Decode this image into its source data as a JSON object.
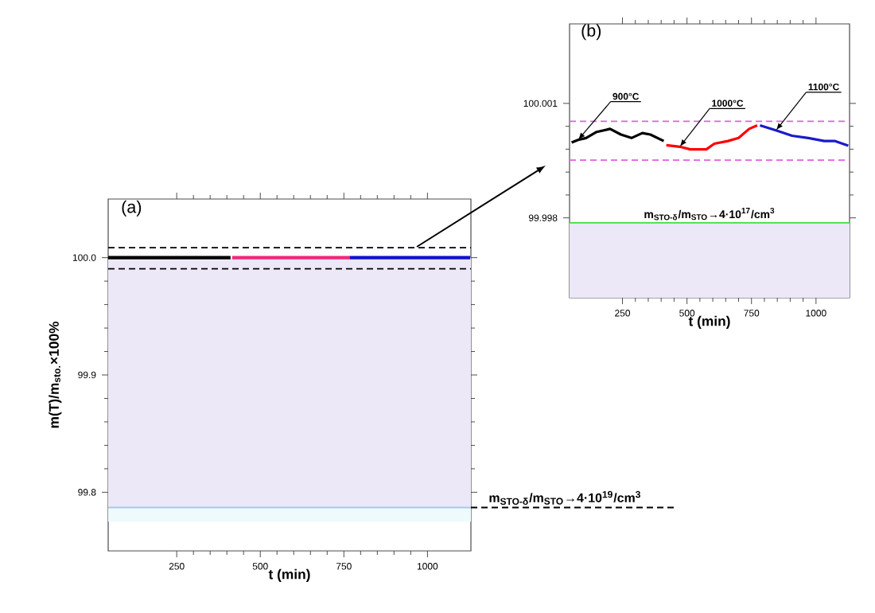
{
  "chart_data": [
    {
      "type": "line",
      "title": "(a)",
      "xlabel": "t (min)",
      "ylabel": "m(T)/m$_{sto.}$×100%",
      "xlim": [
        45,
        1130
      ],
      "xticks": [
        250,
        500,
        750,
        1000
      ],
      "ylim": [
        99.75,
        100.05
      ],
      "yticks": [
        99.8,
        99.9,
        {
          "value": 100.0,
          "label": "100.0"
        }
      ],
      "series": [
        {
          "color": "#000000",
          "x": [
            45,
            411
          ],
          "values": [
            100.0,
            100.0
          ]
        },
        {
          "color": "#f0287a",
          "x": [
            416,
            767
          ],
          "values": [
            100.0,
            100.0
          ]
        },
        {
          "color": "#1010d0",
          "x": [
            767,
            1128
          ],
          "values": [
            100.0,
            100.0
          ]
        }
      ],
      "bands": [
        {
          "axis": "y",
          "from": 99.787,
          "to": 100.0,
          "color": "#ece8f8"
        },
        {
          "axis": "y",
          "from": 99.775,
          "to": 99.787,
          "color": "#eefafc"
        }
      ],
      "ref_lines": [
        {
          "axis": "y",
          "value": 100.0085,
          "color": "#000000",
          "line_style": "dashed"
        },
        {
          "axis": "y",
          "value": 99.9905,
          "color": "#000000",
          "line_style": "dashed"
        },
        {
          "axis": "y",
          "value": 99.787,
          "color": "#a8c8e8",
          "label": "m$_{STO-δ}$/m$_{STO}$→4·10$^{19}$/cm$^{3}$"
        }
      ]
    },
    {
      "type": "line",
      "title": "(b)",
      "xlabel": "t (min)",
      "xlim": [
        45,
        1130
      ],
      "xticks": [
        250,
        500,
        750,
        1000
      ],
      "ylim": [
        99.9959,
        100.0031
      ],
      "yticks": [
        99.998,
        100.001
      ],
      "series": [
        {
          "name": "900°C",
          "color": "#000000",
          "x": [
            53,
            78,
            109,
            150,
            202,
            244,
            285,
            327,
            358,
            410
          ],
          "values": [
            99.99998,
            100.00005,
            100.00009,
            100.00026,
            100.00033,
            100.00019,
            100.00009,
            100.00023,
            100.00019,
            100.00001
          ]
        },
        {
          "name": "1000°C",
          "color": "#ff0000",
          "x": [
            420,
            472,
            513,
            575,
            606,
            659,
            700,
            741,
            772
          ],
          "values": [
            99.99991,
            99.99987,
            99.9998,
            99.9998,
            99.99995,
            100.00001,
            100.00009,
            100.00033,
            100.00043
          ]
        },
        {
          "name": "1100°C",
          "color": "#1a1acc",
          "x": [
            783,
            845,
            907,
            970,
            1032,
            1074,
            1125
          ],
          "values": [
            100.00043,
            100.00029,
            100.00015,
            100.00009,
            100.00002,
            100.00001,
            99.9999
          ]
        }
      ],
      "bands": [
        {
          "axis": "y",
          "from": 99.9959,
          "to": 99.99787,
          "color": "#ece8f8"
        }
      ],
      "ref_lines": [
        {
          "axis": "y",
          "value": 100.00054,
          "color": "#e060e0",
          "line_style": "dashed"
        },
        {
          "axis": "y",
          "value": 99.99952,
          "color": "#e060e0",
          "line_style": "dashed"
        },
        {
          "axis": "y",
          "value": 99.99787,
          "color": "#40e040",
          "label": "m$_{STO-δ}$/m$_{STO}$→4·10$^{17}$/cm$^{3}$"
        }
      ]
    }
  ]
}
